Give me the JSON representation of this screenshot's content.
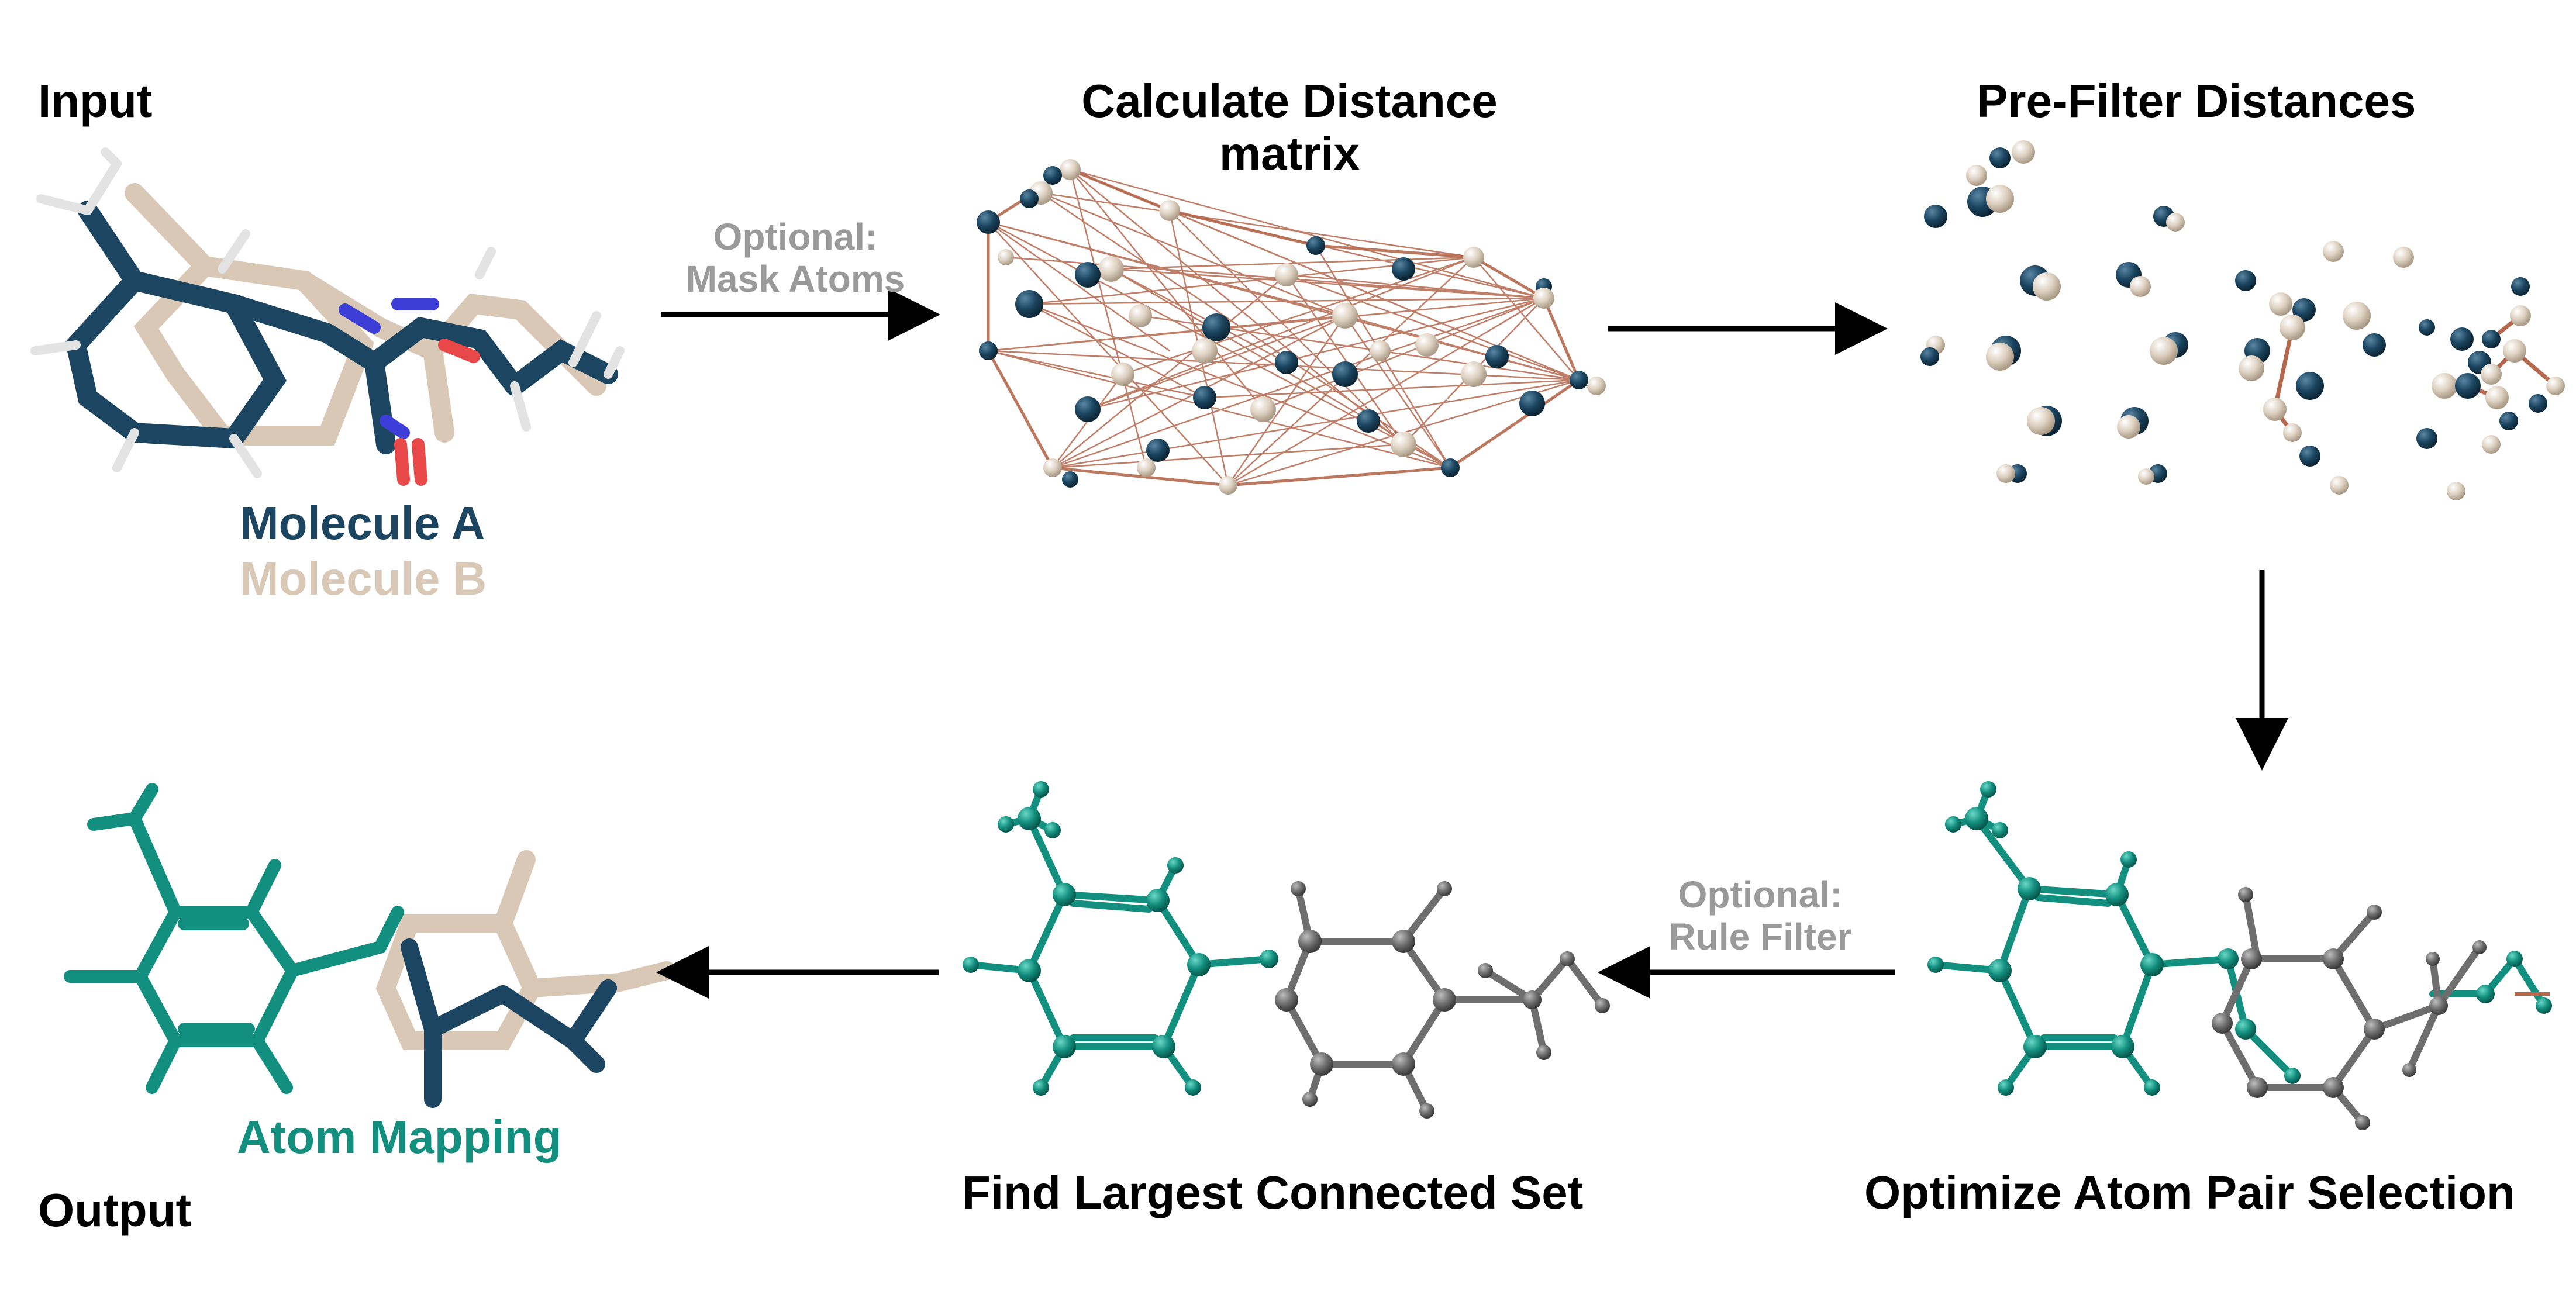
{
  "labels": {
    "input": "Input",
    "output": "Output",
    "calc_title_1": "Calculate Distance",
    "calc_title_2": "matrix",
    "prefilter": "Pre-Filter Distances",
    "optional_mask_1": "Optional:",
    "optional_mask_2": "Mask Atoms",
    "optional_rule_1": "Optional:",
    "optional_rule_2": "Rule Filter",
    "molecule_a": "Molecule A",
    "molecule_b": "Molecule B",
    "atom_mapping": "Atom Mapping",
    "find_largest": "Find Largest Connected Set",
    "optimize": "Optimize Atom Pair Selection"
  },
  "colors": {
    "molecule_a": "#1b4560",
    "molecule_b": "#d8c8b5",
    "mapped": "#138f7f",
    "unmapped": "#6e6e6e",
    "distance_lines": "#b5684e",
    "optional_text": "#9a9a9a",
    "nitrogen": "#3d3dd8",
    "oxygen": "#e84848"
  }
}
